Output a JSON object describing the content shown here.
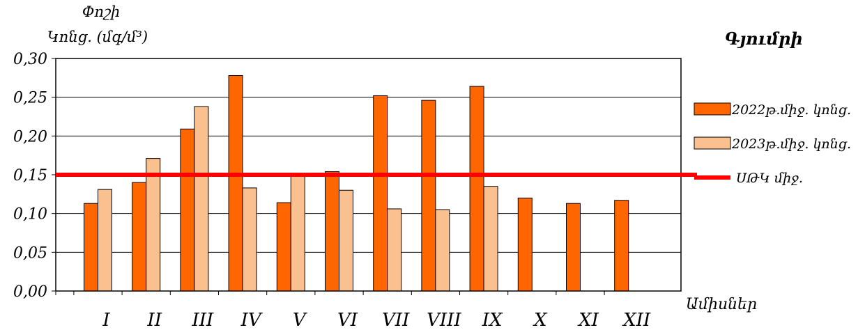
{
  "chart_data": {
    "type": "bar",
    "title": "Գյումրի",
    "ylabel_line1": "Փոշի",
    "ylabel_line2": "Կոնց. (մգ/մ³)",
    "xlabel": "Ամիսներ",
    "ylim": [
      0,
      0.3
    ],
    "yticks": [
      "0,00",
      "0,05",
      "0,10",
      "0,15",
      "0,20",
      "0,25",
      "0,30"
    ],
    "categories": [
      "I",
      "II",
      "III",
      "IV",
      "V",
      "VI",
      "VII",
      "VIII",
      "IX",
      "X",
      "XI",
      "XII"
    ],
    "series": [
      {
        "name": "2022թ.միջ. կոնց.",
        "color": "#ff6600",
        "values": [
          0.113,
          0.14,
          0.209,
          0.278,
          0.114,
          0.154,
          0.252,
          0.246,
          0.264,
          0.12,
          0.113,
          0.117
        ]
      },
      {
        "name": "2023թ.միջ. կոնց.",
        "color": "#fac090",
        "values": [
          0.131,
          0.171,
          0.238,
          0.133,
          0.148,
          0.13,
          0.106,
          0.105,
          0.135,
          null,
          null,
          null
        ]
      }
    ],
    "reference_line": {
      "name": "ՍԹԿ միջ.",
      "value": 0.15,
      "color": "#ff0000"
    },
    "grid": true,
    "legend_position": "right"
  }
}
